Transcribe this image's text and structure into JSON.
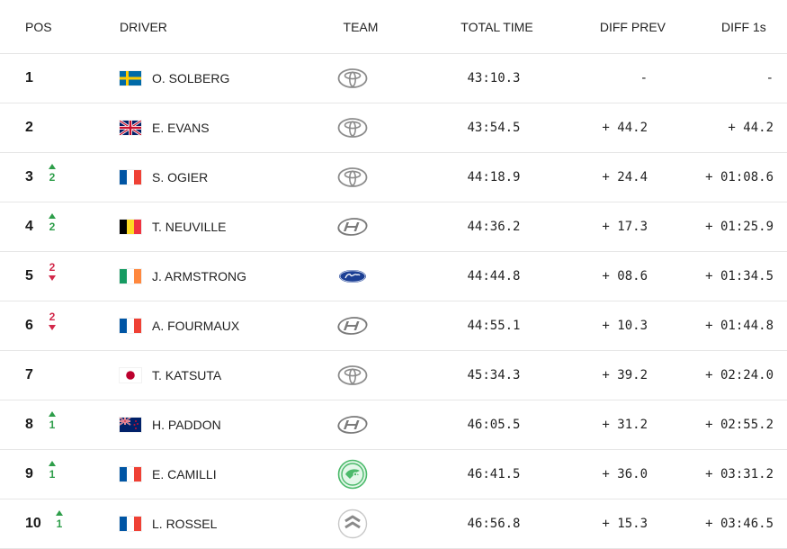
{
  "headers": {
    "pos": "POS",
    "driver": "DRIVER",
    "team": "TEAM",
    "total_time": "TOTAL TIME",
    "diff_prev": "DIFF PREV",
    "diff_first": "DIFF 1s"
  },
  "rows": [
    {
      "pos": "1",
      "change": "",
      "dir": "",
      "flag": "se",
      "driver": "O. SOLBERG",
      "team": "toyota",
      "time": "43:10.3",
      "diff_prev": "-",
      "diff_first": "-"
    },
    {
      "pos": "2",
      "change": "",
      "dir": "",
      "flag": "gb",
      "driver": "E. EVANS",
      "team": "toyota",
      "time": "43:54.5",
      "diff_prev": "+ 44.2",
      "diff_first": "+ 44.2"
    },
    {
      "pos": "3",
      "change": "2",
      "dir": "up",
      "flag": "fr",
      "driver": "S. OGIER",
      "team": "toyota",
      "time": "44:18.9",
      "diff_prev": "+ 24.4",
      "diff_first": "+ 01:08.6"
    },
    {
      "pos": "4",
      "change": "2",
      "dir": "up",
      "flag": "be",
      "driver": "T. NEUVILLE",
      "team": "hyundai",
      "time": "44:36.2",
      "diff_prev": "+ 17.3",
      "diff_first": "+ 01:25.9"
    },
    {
      "pos": "5",
      "change": "2",
      "dir": "down",
      "flag": "ie",
      "driver": "J. ARMSTRONG",
      "team": "ford",
      "time": "44:44.8",
      "diff_prev": "+ 08.6",
      "diff_first": "+ 01:34.5"
    },
    {
      "pos": "6",
      "change": "2",
      "dir": "down",
      "flag": "fr",
      "driver": "A. FOURMAUX",
      "team": "hyundai",
      "time": "44:55.1",
      "diff_prev": "+ 10.3",
      "diff_first": "+ 01:44.8"
    },
    {
      "pos": "7",
      "change": "",
      "dir": "",
      "flag": "jp",
      "driver": "T. KATSUTA",
      "team": "toyota",
      "time": "45:34.3",
      "diff_prev": "+ 39.2",
      "diff_first": "+ 02:24.0"
    },
    {
      "pos": "8",
      "change": "1",
      "dir": "up",
      "flag": "nz",
      "driver": "H. PADDON",
      "team": "hyundai",
      "time": "46:05.5",
      "diff_prev": "+ 31.2",
      "diff_first": "+ 02:55.2"
    },
    {
      "pos": "9",
      "change": "1",
      "dir": "up",
      "flag": "fr",
      "driver": "E. CAMILLI",
      "team": "skoda",
      "time": "46:41.5",
      "diff_prev": "+ 36.0",
      "diff_first": "+ 03:31.2"
    },
    {
      "pos": "10",
      "change": "1",
      "dir": "up",
      "flag": "fr",
      "driver": "L. ROSSEL",
      "team": "citroen",
      "time": "46:56.8",
      "diff_prev": "+ 15.3",
      "diff_first": "+ 03:46.5"
    }
  ],
  "colors": {
    "up": "#2e9e4a",
    "down": "#d2284a",
    "divider": "#e6e6e6"
  }
}
